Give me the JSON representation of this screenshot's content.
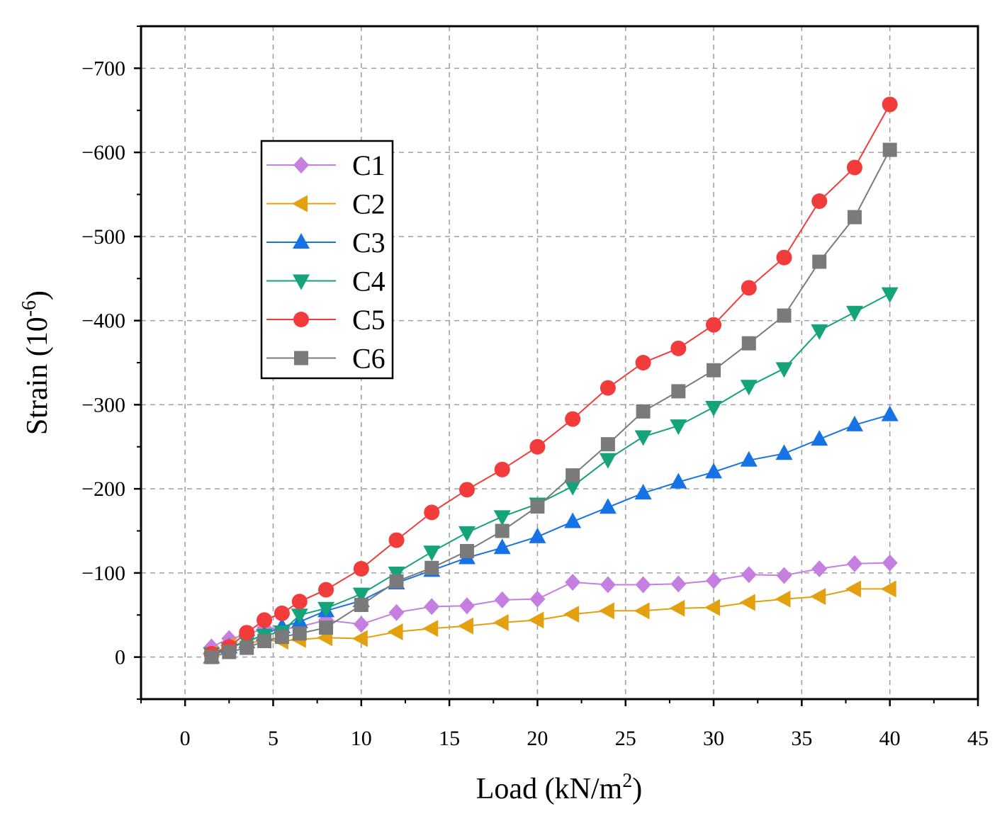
{
  "chart_data": {
    "type": "line",
    "title": "",
    "xlabel": "Load (kN/m",
    "xlabel_sup": "2",
    "xlabel_end": ")",
    "ylabel": "Strain (10",
    "ylabel_sup": "-6",
    "ylabel_end": ")",
    "xlim": [
      -2.5,
      45
    ],
    "ylim": [
      50,
      -750
    ],
    "y_inverted": true,
    "grid": true,
    "legend_position": "upper-left",
    "xticks": [
      0,
      5,
      10,
      15,
      20,
      25,
      30,
      35,
      40,
      45
    ],
    "xtick_labels": [
      "0",
      "5",
      "10",
      "15",
      "20",
      "25",
      "30",
      "35",
      "40",
      "45"
    ],
    "yticks": [
      0,
      -100,
      -200,
      -300,
      -400,
      -500,
      -600,
      -700
    ],
    "ytick_labels": [
      "0",
      "−100",
      "−200",
      "−300",
      "−400",
      "−500",
      "−600",
      "−700"
    ],
    "x": [
      1.5,
      2.5,
      3.5,
      4.5,
      5.5,
      6.5,
      8,
      10,
      12,
      14,
      16,
      18,
      20,
      22,
      24,
      26,
      28,
      30,
      32,
      34,
      36,
      38,
      40
    ],
    "series": [
      {
        "name": "C1",
        "color": "#c57fe0",
        "marker": "diamond",
        "values": [
          -12,
          -22,
          -26,
          -35,
          -33,
          -36,
          -44,
          -39,
          -53,
          -60,
          -61,
          -68,
          -69,
          -89,
          -86,
          -86,
          -87,
          -91,
          -98,
          -97,
          -105,
          -111,
          -112
        ]
      },
      {
        "name": "C2",
        "color": "#e3a00f",
        "marker": "triangle-left",
        "values": [
          -4,
          -14,
          -16,
          -20,
          -19,
          -21,
          -23,
          -22,
          -30,
          -34,
          -37,
          -41,
          -44,
          -51,
          -55,
          -55,
          -58,
          -59,
          -65,
          -69,
          -72,
          -81,
          -81
        ]
      },
      {
        "name": "C3",
        "color": "#1673e6",
        "marker": "triangle-up",
        "values": [
          0,
          -12,
          -18,
          -27,
          -36,
          -42,
          -55,
          -67,
          -88,
          -103,
          -118,
          -130,
          -143,
          -161,
          -178,
          -195,
          -208,
          -220,
          -234,
          -242,
          -259,
          -276,
          -288
        ]
      },
      {
        "name": "C4",
        "color": "#14a37a",
        "marker": "triangle-down",
        "values": [
          -4,
          -10,
          -19,
          -26,
          -30,
          -50,
          -58,
          -75,
          -100,
          -125,
          -148,
          -167,
          -182,
          -203,
          -235,
          -262,
          -275,
          -297,
          -322,
          -343,
          -388,
          -410,
          -432
        ]
      },
      {
        "name": "C5",
        "color": "#f23b3b",
        "marker": "circle",
        "values": [
          -4,
          -12,
          -29,
          -44,
          -52,
          -66,
          -80,
          -105,
          -139,
          -172,
          -199,
          -223,
          -250,
          -283,
          -320,
          -350,
          -367,
          -395,
          -439,
          -475,
          -542,
          -582,
          -657
        ]
      },
      {
        "name": "C6",
        "color": "#7a7a7a",
        "marker": "square",
        "values": [
          0,
          -6,
          -11,
          -19,
          -24,
          -28,
          -35,
          -62,
          -90,
          -106,
          -126,
          -150,
          -179,
          -216,
          -253,
          -292,
          -316,
          -341,
          -373,
          -406,
          -470,
          -523,
          -603
        ]
      }
    ]
  }
}
